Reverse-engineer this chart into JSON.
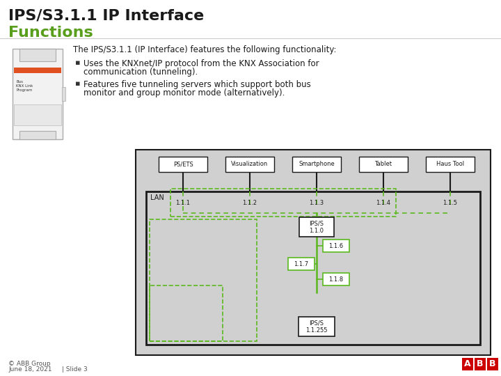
{
  "title_line1": "IPS/S3.1.1 IP Interface",
  "title_line2": "Functions",
  "title_color": "#1a1a1a",
  "title_green_color": "#5a9e1e",
  "bg_color": "#ffffff",
  "intro_text": "The IPS/S3.1.1 (IP Interface) features the following functionality:",
  "bullet1_line1": "Uses the KNXnet/IP protocol from the KNX Association for",
  "bullet1_line2": "communication (tunneling).",
  "bullet2_line1": "Features five tunneling servers which support both bus",
  "bullet2_line2": "monitor and group monitor mode (alternatively).",
  "footer_left1": "© ABB Group",
  "footer_left2": "June 18, 2021",
  "footer_slide": "| Slide 3",
  "diagram_bg": "#d0d0d0",
  "diagram_border": "#1a1a1a",
  "green_solid": "#5ab81e",
  "device_labels": [
    "PS/ETS",
    "Visualization",
    "Smartphone",
    "Tablet",
    "Haus Tool"
  ],
  "tunnel_labels": [
    "1.1.1",
    "1.1.2",
    "1.1.3",
    "1.1.4",
    "1.1.5"
  ],
  "ips_main_label": "IPS/S\n1.1.0",
  "ips_sub_label1": "1.1.6",
  "ips_sub_label2": "1.1.7",
  "ips_sub_label3": "1.1.8",
  "ips_bottom_label": "IPS/S\n1.1.255",
  "lan_label": "LAN"
}
